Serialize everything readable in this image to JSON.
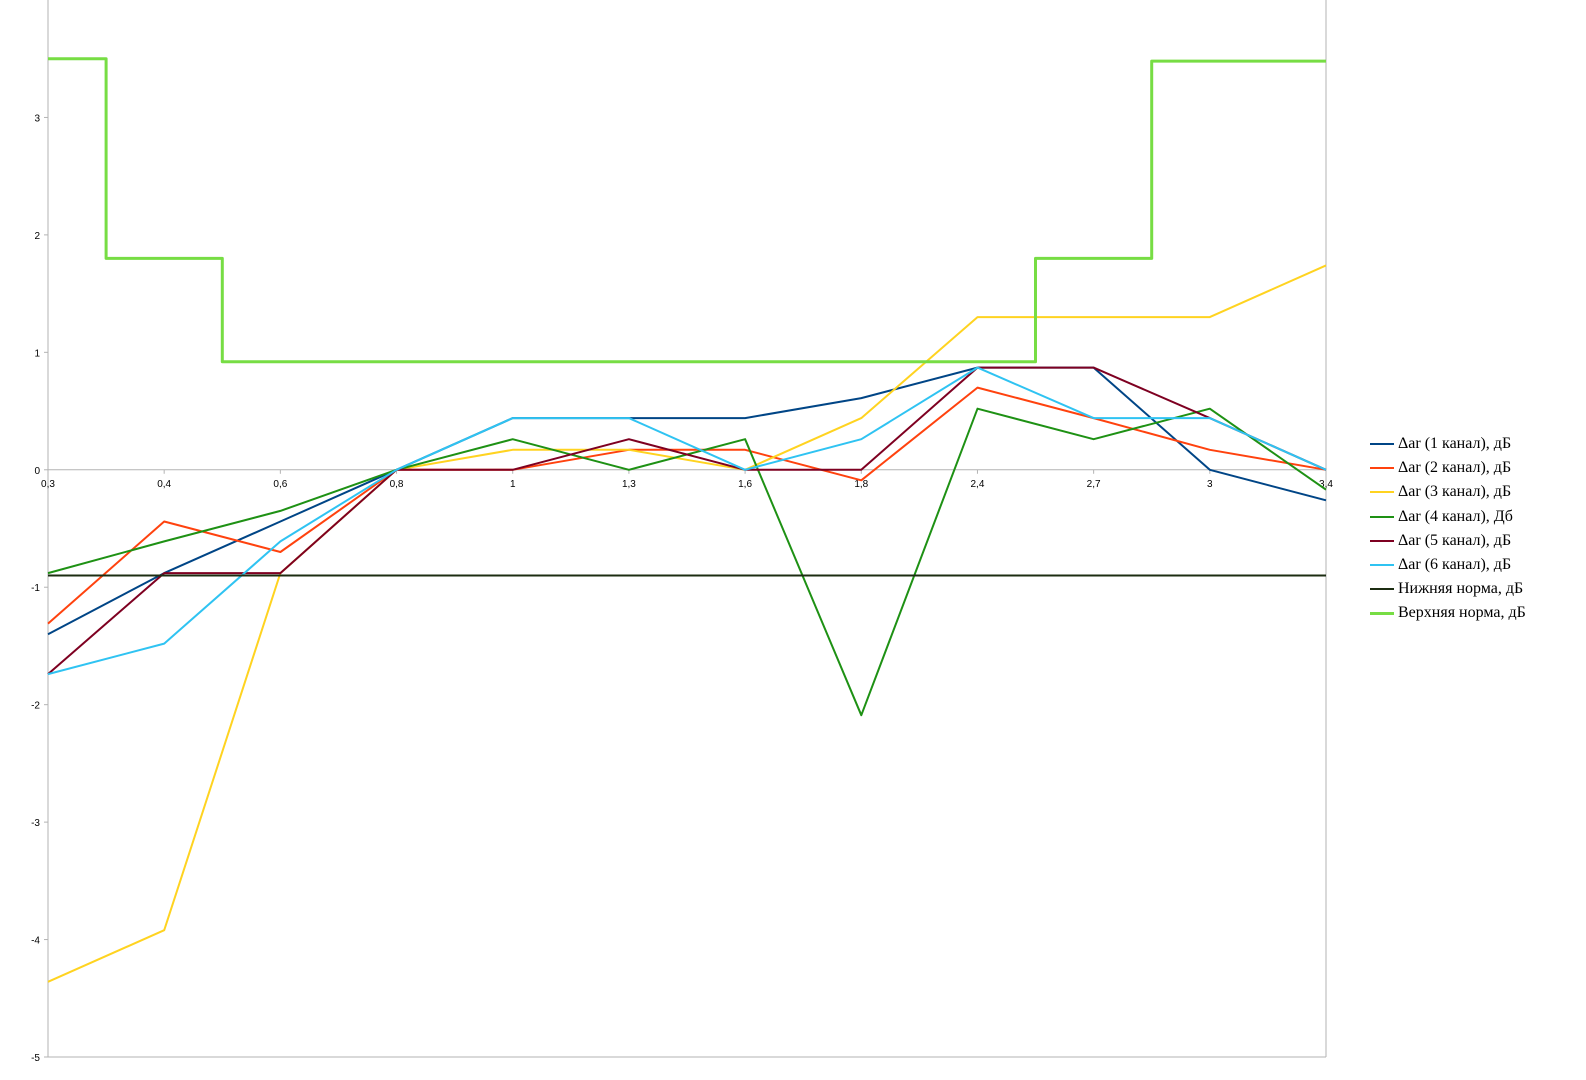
{
  "chart_data": {
    "type": "line",
    "categories": [
      "0,3",
      "0,4",
      "0,6",
      "0,8",
      "1",
      "1,3",
      "1,6",
      "1,8",
      "2,4",
      "2,7",
      "3",
      "3,4"
    ],
    "y_ticks": [
      "3",
      "2",
      "1",
      "0",
      "-1",
      "-2",
      "-3",
      "-4",
      "-5"
    ],
    "ylim": [
      -5,
      4
    ],
    "grid": false,
    "legend_position": "right",
    "series": [
      {
        "name": "Δar (1 канал), дБ",
        "color": "#004586",
        "values": [
          -1.4,
          -0.88,
          -0.44,
          0,
          0.44,
          0.44,
          0.44,
          0.61,
          0.87,
          0.87,
          0,
          -0.26
        ]
      },
      {
        "name": "Δar (2 канал), дБ",
        "color": "#ff420e",
        "values": [
          -1.31,
          -0.44,
          -0.7,
          0,
          0,
          0.17,
          0.17,
          -0.09,
          0.7,
          0.44,
          0.17,
          0
        ]
      },
      {
        "name": "Δar (3 канал), дБ",
        "color": "#ffd320",
        "values": [
          -4.36,
          -3.92,
          -0.88,
          0,
          0.17,
          0.17,
          0,
          0.44,
          1.3,
          1.3,
          1.3,
          1.74
        ]
      },
      {
        "name": "Δar (4 канал), Дб",
        "color": "#1e9114",
        "values": [
          -0.88,
          -0.61,
          -0.35,
          0,
          0.26,
          0,
          0.26,
          -2.09,
          0.52,
          0.26,
          0.52,
          -0.17
        ]
      },
      {
        "name": "Δar (5 канал), дБ",
        "color": "#7e0021",
        "values": [
          -1.74,
          -0.88,
          -0.88,
          0,
          0,
          0.26,
          0,
          0,
          0.87,
          0.87,
          0.44,
          0
        ]
      },
      {
        "name": "Δar (6 канал), дБ",
        "color": "#2fc3f2",
        "values": [
          -1.74,
          -1.48,
          -0.61,
          0,
          0.44,
          0.44,
          0,
          0.26,
          0.87,
          0.44,
          0.44,
          0
        ]
      },
      {
        "name": "Нижняя норма, дБ",
        "color": "#1c2d12",
        "values": [
          -0.9,
          -0.9,
          -0.9,
          -0.9,
          -0.9,
          -0.9,
          -0.9,
          -0.9,
          -0.9,
          -0.9,
          -0.9,
          -0.9
        ]
      },
      {
        "name": "Верхняя норма, дБ",
        "color": "#77dd44",
        "step": true,
        "values": [
          3.5,
          1.8,
          0.92,
          0.92,
          0.92,
          0.92,
          0.92,
          0.92,
          0.92,
          1.8,
          3.48,
          3.48
        ]
      }
    ]
  }
}
